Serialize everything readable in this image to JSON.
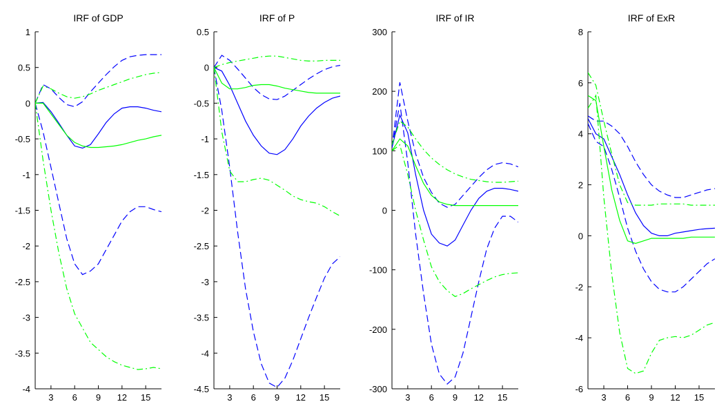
{
  "chart_data": [
    {
      "type": "line",
      "title": "IRF of GDP",
      "x": [
        1,
        2,
        3,
        4,
        5,
        6,
        7,
        8,
        9,
        10,
        11,
        12,
        13,
        14,
        15,
        16,
        17
      ],
      "xticks": [
        3,
        6,
        9,
        12,
        15
      ],
      "ylim": [
        -4,
        1
      ],
      "yticks": [
        1,
        0.5,
        0,
        -0.5,
        -1,
        -1.5,
        -2,
        -2.5,
        -3,
        -3.5,
        -4
      ],
      "grid": false,
      "series": [
        {
          "color": "#0000ff",
          "style": "solid",
          "values": [
            0,
            0.01,
            -0.12,
            -0.28,
            -0.45,
            -0.6,
            -0.63,
            -0.58,
            -0.43,
            -0.27,
            -0.15,
            -0.07,
            -0.05,
            -0.05,
            -0.07,
            -0.1,
            -0.12
          ]
        },
        {
          "color": "#0000ff",
          "style": "dashed",
          "values": [
            0,
            0.26,
            0.2,
            0.08,
            -0.02,
            -0.05,
            0.02,
            0.16,
            0.28,
            0.4,
            0.51,
            0.6,
            0.65,
            0.67,
            0.68,
            0.68,
            0.68
          ]
        },
        {
          "color": "#0000ff",
          "style": "dashed",
          "values": [
            0,
            -0.4,
            -0.9,
            -1.4,
            -1.9,
            -2.25,
            -2.4,
            -2.35,
            -2.25,
            -2.05,
            -1.85,
            -1.65,
            -1.52,
            -1.45,
            -1.45,
            -1.49,
            -1.52
          ]
        },
        {
          "color": "#00ff00",
          "style": "solid",
          "values": [
            0,
            0.0,
            -0.15,
            -0.3,
            -0.45,
            -0.55,
            -0.6,
            -0.62,
            -0.62,
            -0.61,
            -0.6,
            -0.58,
            -0.55,
            -0.52,
            -0.5,
            -0.47,
            -0.45
          ]
        },
        {
          "color": "#00ff00",
          "style": "dashdot",
          "values": [
            0,
            0.24,
            0.2,
            0.14,
            0.09,
            0.07,
            0.09,
            0.13,
            0.18,
            0.22,
            0.26,
            0.3,
            0.34,
            0.37,
            0.4,
            0.42,
            0.43
          ]
        },
        {
          "color": "#00ff00",
          "style": "dashdot",
          "values": [
            0,
            -0.8,
            -1.5,
            -2.1,
            -2.6,
            -2.95,
            -3.15,
            -3.35,
            -3.45,
            -3.55,
            -3.62,
            -3.67,
            -3.7,
            -3.73,
            -3.72,
            -3.7,
            -3.72
          ]
        }
      ]
    },
    {
      "type": "line",
      "title": "IRF of P",
      "x": [
        1,
        2,
        3,
        4,
        5,
        6,
        7,
        8,
        9,
        10,
        11,
        12,
        13,
        14,
        15,
        16,
        17
      ],
      "xticks": [
        3,
        6,
        9,
        12,
        15
      ],
      "ylim": [
        -4.5,
        0.5
      ],
      "yticks": [
        0.5,
        0,
        -0.5,
        -1,
        -1.5,
        -2,
        -2.5,
        -3,
        -3.5,
        -4,
        -4.5
      ],
      "grid": false,
      "series": [
        {
          "color": "#0000ff",
          "style": "solid",
          "values": [
            0,
            -0.05,
            -0.25,
            -0.5,
            -0.75,
            -0.95,
            -1.1,
            -1.2,
            -1.22,
            -1.15,
            -1.0,
            -0.82,
            -0.68,
            -0.57,
            -0.49,
            -0.43,
            -0.4
          ]
        },
        {
          "color": "#0000ff",
          "style": "dashed",
          "values": [
            0,
            0.17,
            0.1,
            -0.02,
            -0.15,
            -0.28,
            -0.38,
            -0.44,
            -0.45,
            -0.4,
            -0.32,
            -0.24,
            -0.16,
            -0.09,
            -0.03,
            0.01,
            0.03
          ]
        },
        {
          "color": "#0000ff",
          "style": "dashed",
          "values": [
            0,
            -0.6,
            -1.4,
            -2.3,
            -3.1,
            -3.7,
            -4.15,
            -4.42,
            -4.48,
            -4.35,
            -4.1,
            -3.8,
            -3.5,
            -3.22,
            -2.95,
            -2.75,
            -2.65
          ]
        },
        {
          "color": "#00ff00",
          "style": "solid",
          "values": [
            0,
            -0.22,
            -0.3,
            -0.3,
            -0.28,
            -0.25,
            -0.24,
            -0.24,
            -0.26,
            -0.29,
            -0.31,
            -0.33,
            -0.35,
            -0.36,
            -0.36,
            -0.36,
            -0.36
          ]
        },
        {
          "color": "#00ff00",
          "style": "dashdot",
          "values": [
            0,
            0.04,
            0.07,
            0.09,
            0.11,
            0.13,
            0.15,
            0.16,
            0.16,
            0.14,
            0.12,
            0.1,
            0.09,
            0.09,
            0.1,
            0.1,
            0.1
          ]
        },
        {
          "color": "#00ff00",
          "style": "dashdot",
          "values": [
            0,
            -0.9,
            -1.45,
            -1.6,
            -1.6,
            -1.57,
            -1.55,
            -1.58,
            -1.65,
            -1.72,
            -1.8,
            -1.85,
            -1.88,
            -1.9,
            -1.95,
            -2.02,
            -2.08
          ]
        }
      ]
    },
    {
      "type": "line",
      "title": "IRF of IR",
      "x": [
        1,
        2,
        3,
        4,
        5,
        6,
        7,
        8,
        9,
        10,
        11,
        12,
        13,
        14,
        15,
        16,
        17
      ],
      "xticks": [
        3,
        6,
        9,
        12,
        15
      ],
      "ylim": [
        -300,
        300
      ],
      "yticks": [
        300,
        200,
        100,
        0,
        -100,
        -200,
        -300
      ],
      "grid": false,
      "series": [
        {
          "color": "#0000ff",
          "style": "solid",
          "values": [
            105,
            160,
            130,
            60,
            0,
            -40,
            -55,
            -60,
            -50,
            -25,
            0,
            20,
            32,
            37,
            37,
            35,
            32
          ]
        },
        {
          "color": "#0000ff",
          "style": "dashed",
          "values": [
            105,
            215,
            150,
            95,
            55,
            30,
            12,
            5,
            10,
            25,
            40,
            55,
            68,
            77,
            80,
            78,
            73
          ]
        },
        {
          "color": "#0000ff",
          "style": "dashed",
          "values": [
            105,
            180,
            80,
            -40,
            -140,
            -225,
            -275,
            -292,
            -280,
            -240,
            -180,
            -120,
            -65,
            -30,
            -10,
            -10,
            -20
          ]
        },
        {
          "color": "#00ff00",
          "style": "solid",
          "values": [
            100,
            120,
            108,
            75,
            45,
            25,
            14,
            10,
            8,
            8,
            8,
            8,
            8,
            8,
            8,
            8,
            8
          ]
        },
        {
          "color": "#00ff00",
          "style": "dashdot",
          "values": [
            110,
            150,
            140,
            120,
            102,
            88,
            77,
            68,
            61,
            56,
            52,
            50,
            48,
            47,
            47,
            48,
            49
          ]
        },
        {
          "color": "#00ff00",
          "style": "dashdot",
          "values": [
            100,
            110,
            60,
            0,
            -50,
            -95,
            -120,
            -135,
            -145,
            -140,
            -132,
            -125,
            -118,
            -112,
            -108,
            -106,
            -105
          ]
        }
      ]
    },
    {
      "type": "line",
      "title": "IRF of ExR",
      "x": [
        1,
        2,
        3,
        4,
        5,
        6,
        7,
        8,
        9,
        10,
        11,
        12,
        13,
        14,
        15,
        16,
        17
      ],
      "xticks": [
        3,
        6,
        9,
        12,
        15
      ],
      "ylim": [
        -6,
        8
      ],
      "yticks": [
        8,
        6,
        4,
        2,
        0,
        -2,
        -4,
        -6
      ],
      "grid": false,
      "series": [
        {
          "color": "#0000ff",
          "style": "solid",
          "values": [
            4.6,
            4.0,
            3.8,
            3.1,
            2.4,
            1.6,
            0.9,
            0.4,
            0.1,
            0.0,
            0.0,
            0.1,
            0.15,
            0.2,
            0.25,
            0.28,
            0.3
          ]
        },
        {
          "color": "#0000ff",
          "style": "dashed",
          "values": [
            4.7,
            4.5,
            4.5,
            4.3,
            4.0,
            3.5,
            2.9,
            2.4,
            2.0,
            1.75,
            1.6,
            1.5,
            1.5,
            1.6,
            1.7,
            1.8,
            1.85
          ]
        },
        {
          "color": "#0000ff",
          "style": "dashed",
          "values": [
            4.4,
            3.7,
            3.5,
            2.6,
            1.5,
            0.3,
            -0.6,
            -1.3,
            -1.8,
            -2.1,
            -2.2,
            -2.2,
            -2.0,
            -1.7,
            -1.4,
            -1.1,
            -0.9
          ]
        },
        {
          "color": "#00ff00",
          "style": "solid",
          "values": [
            5.5,
            5.3,
            3.5,
            1.8,
            0.6,
            -0.2,
            -0.3,
            -0.2,
            -0.1,
            -0.1,
            -0.1,
            -0.1,
            -0.1,
            -0.05,
            -0.05,
            -0.05,
            -0.05
          ]
        },
        {
          "color": "#00ff00",
          "style": "dashdot",
          "values": [
            6.4,
            5.9,
            4.5,
            3.2,
            2.0,
            1.3,
            1.2,
            1.2,
            1.2,
            1.25,
            1.25,
            1.25,
            1.25,
            1.2,
            1.2,
            1.2,
            1.2
          ]
        },
        {
          "color": "#00ff00",
          "style": "dashdot",
          "values": [
            5.0,
            5.5,
            1.5,
            -1.5,
            -3.8,
            -5.2,
            -5.4,
            -5.3,
            -4.6,
            -4.1,
            -4.0,
            -3.95,
            -4.0,
            -3.9,
            -3.7,
            -3.5,
            -3.4
          ]
        }
      ]
    }
  ]
}
